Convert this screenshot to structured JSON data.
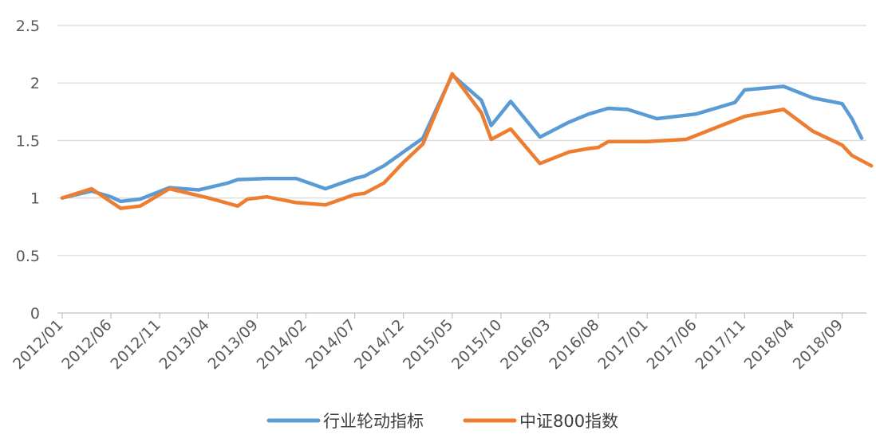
{
  "chart_data": {
    "type": "line",
    "title": "",
    "xlabel": "",
    "ylabel": "",
    "ylim": [
      0,
      2.5
    ],
    "yticks": [
      0,
      0.5,
      1,
      1.5,
      2,
      2.5
    ],
    "ytick_labels": [
      "0",
      "0.5",
      "1",
      "1.5",
      "2",
      "2.5"
    ],
    "x_range": [
      "2012-01",
      "2018-11"
    ],
    "xtick_labels": [
      "2012/01",
      "2012/06",
      "2012/11",
      "2013/04",
      "2013/09",
      "2014/02",
      "2014/07",
      "2014/12",
      "2015/05",
      "2015/10",
      "2016/03",
      "2016/08",
      "2017/01",
      "2017/06",
      "2017/11",
      "2018/04",
      "2018/09"
    ],
    "grid": true,
    "legend_position": "bottom",
    "series": [
      {
        "name": "行业轮动指标",
        "color": "#5B9BD5",
        "points": [
          [
            "2012-01",
            1.0
          ],
          [
            "2012-04",
            1.06
          ],
          [
            "2012-06",
            1.01
          ],
          [
            "2012-07",
            0.97
          ],
          [
            "2012-09",
            0.99
          ],
          [
            "2012-12",
            1.09
          ],
          [
            "2013-03",
            1.07
          ],
          [
            "2013-06",
            1.13
          ],
          [
            "2013-07",
            1.16
          ],
          [
            "2013-10",
            1.17
          ],
          [
            "2014-01",
            1.17
          ],
          [
            "2014-04",
            1.08
          ],
          [
            "2014-07",
            1.17
          ],
          [
            "2014-08",
            1.19
          ],
          [
            "2014-10",
            1.28
          ],
          [
            "2014-12",
            1.4
          ],
          [
            "2015-02",
            1.52
          ],
          [
            "2015-05",
            2.07
          ],
          [
            "2015-08",
            1.85
          ],
          [
            "2015-09",
            1.63
          ],
          [
            "2015-11",
            1.84
          ],
          [
            "2016-02",
            1.53
          ],
          [
            "2016-05",
            1.66
          ],
          [
            "2016-07",
            1.73
          ],
          [
            "2016-09",
            1.78
          ],
          [
            "2016-11",
            1.77
          ],
          [
            "2017-02",
            1.69
          ],
          [
            "2017-06",
            1.73
          ],
          [
            "2017-08",
            1.78
          ],
          [
            "2017-10",
            1.83
          ],
          [
            "2017-11",
            1.94
          ],
          [
            "2018-03",
            1.97
          ],
          [
            "2018-06",
            1.87
          ],
          [
            "2018-09",
            1.82
          ],
          [
            "2018-10",
            1.69
          ],
          [
            "2018-11",
            1.52
          ]
        ]
      },
      {
        "name": "中证800指数",
        "color": "#ED7D31",
        "points": [
          [
            "2012-01",
            1.0
          ],
          [
            "2012-04",
            1.08
          ],
          [
            "2012-07",
            0.91
          ],
          [
            "2012-09",
            0.93
          ],
          [
            "2012-12",
            1.08
          ],
          [
            "2013-04",
            1.0
          ],
          [
            "2013-07",
            0.93
          ],
          [
            "2013-08",
            0.99
          ],
          [
            "2013-10",
            1.01
          ],
          [
            "2014-01",
            0.96
          ],
          [
            "2014-04",
            0.94
          ],
          [
            "2014-07",
            1.03
          ],
          [
            "2014-08",
            1.04
          ],
          [
            "2014-10",
            1.13
          ],
          [
            "2014-12",
            1.31
          ],
          [
            "2015-02",
            1.47
          ],
          [
            "2015-05",
            2.08
          ],
          [
            "2015-08",
            1.74
          ],
          [
            "2015-09",
            1.51
          ],
          [
            "2015-11",
            1.6
          ],
          [
            "2016-02",
            1.3
          ],
          [
            "2016-05",
            1.4
          ],
          [
            "2016-07",
            1.43
          ],
          [
            "2016-08",
            1.44
          ],
          [
            "2016-09",
            1.49
          ],
          [
            "2017-01",
            1.49
          ],
          [
            "2017-05",
            1.51
          ],
          [
            "2017-08",
            1.61
          ],
          [
            "2017-11",
            1.71
          ],
          [
            "2018-03",
            1.77
          ],
          [
            "2018-06",
            1.58
          ],
          [
            "2018-09",
            1.46
          ],
          [
            "2018-10",
            1.37
          ],
          [
            "2018-12",
            1.28
          ]
        ]
      }
    ]
  }
}
